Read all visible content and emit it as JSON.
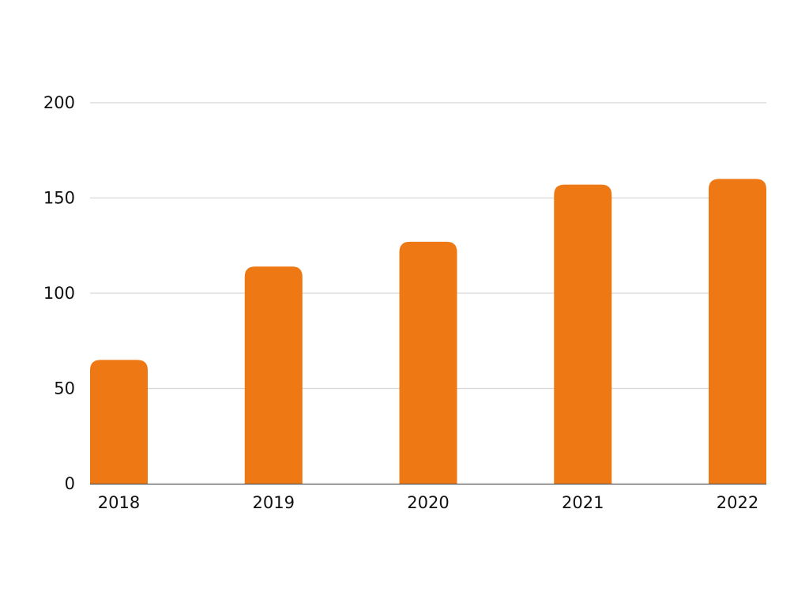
{
  "chart_data": {
    "type": "bar",
    "categories": [
      "2018",
      "2019",
      "2020",
      "2021",
      "2022"
    ],
    "values": [
      65,
      114,
      127,
      157,
      160
    ],
    "title": "",
    "xlabel": "",
    "ylabel": "",
    "ylim": [
      0,
      200
    ],
    "yticks": [
      0,
      50,
      100,
      150,
      200
    ],
    "ytick_labels": [
      "0",
      "50",
      "100",
      "150",
      "200"
    ],
    "grid": true,
    "legend": "none",
    "colors": {
      "bar": "#EE7814",
      "grid": "#d6d6d6",
      "axis": "#555555",
      "text": "#111111"
    }
  }
}
